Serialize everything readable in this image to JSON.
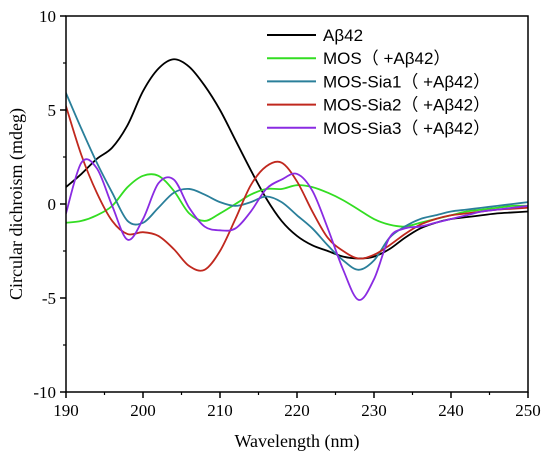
{
  "chart_data": {
    "type": "line",
    "title": "",
    "xlabel": "Wavelength (nm)",
    "ylabel": "Circular dichroism (mdeg)",
    "xlim": [
      190,
      250
    ],
    "ylim": [
      -10,
      10
    ],
    "xticks": [
      190,
      200,
      210,
      220,
      230,
      240,
      250
    ],
    "xtick_labels": [
      "190",
      "200",
      "210",
      "220",
      "230",
      "240",
      "250"
    ],
    "yticks": [
      -10,
      -5,
      0,
      5,
      10
    ],
    "ytick_labels": [
      "-10",
      "-5",
      "0",
      "5",
      "10"
    ],
    "grid": false,
    "legend_position": "top-right",
    "series": [
      {
        "name": "Aβ42",
        "color": "#000000",
        "x": [
          190,
          192,
          194,
          196,
          198,
          200,
          202,
          204,
          206,
          208,
          210,
          212,
          214,
          216,
          218,
          220,
          222,
          224,
          226,
          228,
          230,
          232,
          234,
          236,
          238,
          240,
          242,
          244,
          246,
          248,
          250
        ],
        "y": [
          0.9,
          1.6,
          2.4,
          3.0,
          4.2,
          6.0,
          7.2,
          7.7,
          7.3,
          6.3,
          5.0,
          3.4,
          1.8,
          0.3,
          -0.9,
          -1.7,
          -2.2,
          -2.5,
          -2.8,
          -2.9,
          -2.8,
          -2.4,
          -1.8,
          -1.3,
          -1.0,
          -0.8,
          -0.7,
          -0.6,
          -0.5,
          -0.45,
          -0.4
        ]
      },
      {
        "name": "MOS（ +Aβ42）",
        "color": "#33dd22",
        "x": [
          190,
          192,
          194,
          196,
          198,
          200,
          202,
          204,
          206,
          208,
          210,
          212,
          214,
          216,
          218,
          220,
          222,
          224,
          226,
          228,
          230,
          232,
          234,
          236,
          238,
          240,
          242,
          244,
          246,
          248,
          250
        ],
        "y": [
          -1.0,
          -0.9,
          -0.6,
          -0.1,
          0.9,
          1.5,
          1.5,
          0.7,
          -0.5,
          -0.9,
          -0.5,
          0.0,
          0.5,
          0.8,
          0.8,
          1.0,
          0.9,
          0.6,
          0.2,
          -0.3,
          -0.8,
          -1.1,
          -1.2,
          -1.0,
          -0.8,
          -0.6,
          -0.4,
          -0.3,
          -0.2,
          -0.1,
          -0.1
        ]
      },
      {
        "name": "MOS-Sia1（ +Aβ42）",
        "color": "#2a7f9a",
        "x": [
          190,
          192,
          194,
          196,
          198,
          200,
          202,
          204,
          206,
          208,
          210,
          212,
          214,
          216,
          218,
          220,
          222,
          224,
          226,
          228,
          230,
          232,
          234,
          236,
          238,
          240,
          242,
          244,
          246,
          248,
          250
        ],
        "y": [
          5.9,
          4.0,
          2.2,
          0.6,
          -0.9,
          -1.0,
          -0.2,
          0.6,
          0.8,
          0.5,
          0.1,
          -0.1,
          0.1,
          0.4,
          0.1,
          -0.6,
          -1.3,
          -2.2,
          -3.0,
          -3.5,
          -3.0,
          -1.8,
          -1.2,
          -0.8,
          -0.6,
          -0.4,
          -0.3,
          -0.2,
          -0.1,
          0.0,
          0.1
        ]
      },
      {
        "name": "MOS-Sia2（ +Aβ42）",
        "color": "#c0281e",
        "x": [
          190,
          192,
          194,
          196,
          198,
          200,
          202,
          204,
          206,
          208,
          210,
          212,
          214,
          216,
          218,
          220,
          222,
          224,
          226,
          228,
          230,
          232,
          234,
          236,
          238,
          240,
          242,
          244,
          246,
          248,
          250
        ],
        "y": [
          5.2,
          2.6,
          0.6,
          -0.9,
          -1.6,
          -1.5,
          -1.7,
          -2.4,
          -3.3,
          -3.5,
          -2.5,
          -0.8,
          1.0,
          2.0,
          2.2,
          1.2,
          -0.4,
          -1.8,
          -2.5,
          -2.9,
          -2.7,
          -2.2,
          -1.6,
          -1.1,
          -0.8,
          -0.6,
          -0.5,
          -0.4,
          -0.3,
          -0.25,
          -0.2
        ]
      },
      {
        "name": "MOS-Sia3（ +Aβ42）",
        "color": "#8a2be2",
        "x": [
          190,
          192,
          194,
          196,
          198,
          200,
          202,
          204,
          206,
          208,
          210,
          212,
          214,
          216,
          218,
          220,
          222,
          224,
          226,
          228,
          230,
          232,
          234,
          236,
          238,
          240,
          242,
          244,
          246,
          248,
          250
        ],
        "y": [
          -0.5,
          2.2,
          1.9,
          -0.1,
          -1.9,
          -0.8,
          1.1,
          1.3,
          -0.2,
          -1.2,
          -1.4,
          -1.3,
          -0.4,
          0.8,
          1.3,
          1.6,
          0.7,
          -1.3,
          -3.5,
          -5.1,
          -4.0,
          -1.8,
          -1.3,
          -1.2,
          -1.0,
          -0.8,
          -0.6,
          -0.4,
          -0.3,
          -0.2,
          -0.1
        ]
      }
    ]
  }
}
